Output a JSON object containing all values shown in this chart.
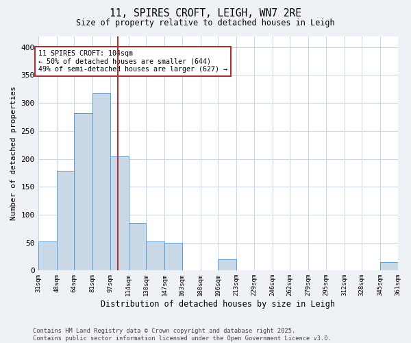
{
  "title": "11, SPIRES CROFT, LEIGH, WN7 2RE",
  "subtitle": "Size of property relative to detached houses in Leigh",
  "xlabel": "Distribution of detached houses by size in Leigh",
  "ylabel": "Number of detached properties",
  "bin_edges": [
    31,
    48,
    64,
    81,
    97,
    114,
    130,
    147,
    163,
    180,
    196,
    213,
    229,
    246,
    262,
    279,
    295,
    312,
    328,
    345,
    361
  ],
  "counts": [
    52,
    178,
    282,
    317,
    204,
    85,
    52,
    50,
    0,
    0,
    20,
    0,
    0,
    0,
    0,
    0,
    0,
    0,
    0,
    15
  ],
  "bar_color": "#c9d9e8",
  "bar_edge_color": "#5b9bd5",
  "property_line_x": 104,
  "property_line_color": "#a83232",
  "annotation_text": "11 SPIRES CROFT: 104sqm\n← 50% of detached houses are smaller (644)\n49% of semi-detached houses are larger (627) →",
  "annotation_box_color": "#a83232",
  "footer": "Contains HM Land Registry data © Crown copyright and database right 2025.\nContains public sector information licensed under the Open Government Licence v3.0.",
  "ylim": [
    0,
    420
  ],
  "yticks": [
    0,
    50,
    100,
    150,
    200,
    250,
    300,
    350,
    400
  ],
  "background_color": "#eef2f7",
  "plot_background_color": "#ffffff",
  "grid_color": "#c5d5e5"
}
